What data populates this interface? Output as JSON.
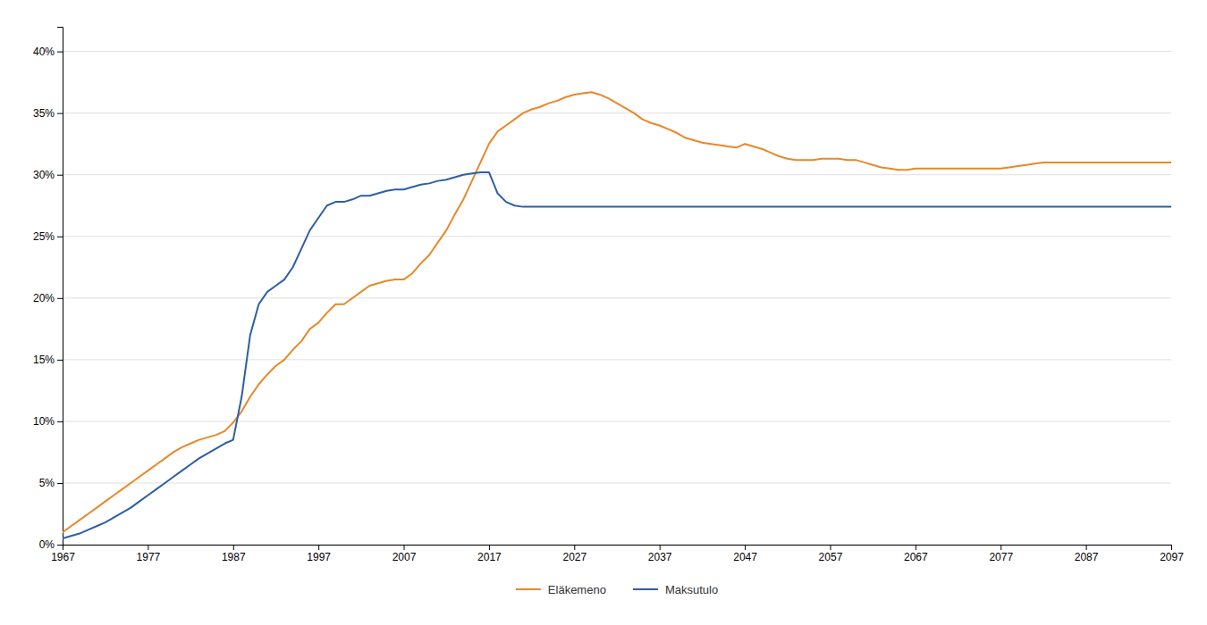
{
  "chart_data": {
    "type": "line",
    "xlim": [
      1967,
      2097
    ],
    "ylim": [
      0,
      42
    ],
    "xticks": [
      1967,
      1977,
      1987,
      1997,
      2007,
      2017,
      2027,
      2037,
      2047,
      2057,
      2067,
      2077,
      2087,
      2097
    ],
    "yticks": [
      {
        "value": 0,
        "label": "0%"
      },
      {
        "value": 5,
        "label": "5%"
      },
      {
        "value": 10,
        "label": "10%"
      },
      {
        "value": 15,
        "label": "15%"
      },
      {
        "value": 20,
        "label": "20%"
      },
      {
        "value": 25,
        "label": "25%"
      },
      {
        "value": 30,
        "label": "30%"
      },
      {
        "value": 35,
        "label": "35%"
      },
      {
        "value": 40,
        "label": "40%"
      }
    ],
    "grid": "y",
    "legend": "bottom",
    "series": [
      {
        "name": "Eläkemeno",
        "color": "#e8882a",
        "x": [
          1967,
          1968,
          1969,
          1970,
          1971,
          1972,
          1973,
          1974,
          1975,
          1976,
          1977,
          1978,
          1979,
          1980,
          1981,
          1982,
          1983,
          1984,
          1985,
          1986,
          1987,
          1988,
          1989,
          1990,
          1991,
          1992,
          1993,
          1994,
          1995,
          1996,
          1997,
          1998,
          1999,
          2000,
          2001,
          2002,
          2003,
          2004,
          2005,
          2006,
          2007,
          2008,
          2009,
          2010,
          2011,
          2012,
          2013,
          2014,
          2015,
          2016,
          2017,
          2018,
          2019,
          2020,
          2021,
          2022,
          2023,
          2024,
          2025,
          2026,
          2027,
          2028,
          2029,
          2030,
          2031,
          2032,
          2033,
          2034,
          2035,
          2036,
          2037,
          2038,
          2039,
          2040,
          2041,
          2042,
          2043,
          2044,
          2045,
          2046,
          2047,
          2048,
          2049,
          2050,
          2051,
          2052,
          2053,
          2054,
          2055,
          2056,
          2057,
          2058,
          2059,
          2060,
          2061,
          2062,
          2063,
          2064,
          2065,
          2066,
          2067,
          2068,
          2069,
          2070,
          2071,
          2072,
          2073,
          2074,
          2075,
          2076,
          2077,
          2078,
          2079,
          2080,
          2081,
          2082,
          2083,
          2084,
          2085,
          2086,
          2087,
          2088,
          2089,
          2090,
          2091,
          2092,
          2093,
          2094,
          2095,
          2096,
          2097
        ],
        "values": [
          1.0,
          1.5,
          2.0,
          2.5,
          3.0,
          3.5,
          4.0,
          4.5,
          5.0,
          5.5,
          6.0,
          6.5,
          7.0,
          7.5,
          7.9,
          8.2,
          8.5,
          8.7,
          8.9,
          9.2,
          9.9,
          10.8,
          12.0,
          13.0,
          13.8,
          14.5,
          15.0,
          15.8,
          16.5,
          17.5,
          18.0,
          18.8,
          19.5,
          19.5,
          20.0,
          20.5,
          21.0,
          21.2,
          21.4,
          21.5,
          21.5,
          22.0,
          22.8,
          23.5,
          24.5,
          25.5,
          26.8,
          28.0,
          29.5,
          31.0,
          32.5,
          33.5,
          34.0,
          34.5,
          35.0,
          35.3,
          35.5,
          35.8,
          36.0,
          36.3,
          36.5,
          36.6,
          36.7,
          36.5,
          36.2,
          35.8,
          35.4,
          35.0,
          34.5,
          34.2,
          34.0,
          33.7,
          33.4,
          33.0,
          32.8,
          32.6,
          32.5,
          32.4,
          32.3,
          32.2,
          32.5,
          32.3,
          32.1,
          31.8,
          31.5,
          31.3,
          31.2,
          31.2,
          31.2,
          31.3,
          31.3,
          31.3,
          31.2,
          31.2,
          31.0,
          30.8,
          30.6,
          30.5,
          30.4,
          30.4,
          30.5,
          30.5,
          30.5,
          30.5,
          30.5,
          30.5,
          30.5,
          30.5,
          30.5,
          30.5,
          30.5,
          30.6,
          30.7,
          30.8,
          30.9,
          31.0,
          31.0,
          31.0,
          31.0,
          31.0,
          31.0,
          31.0,
          31.0,
          31.0,
          31.0,
          31.0,
          31.0,
          31.0,
          31.0,
          31.0,
          31.0
        ]
      },
      {
        "name": "Maksutulo",
        "color": "#2e5fa3",
        "x": [
          1967,
          1968,
          1969,
          1970,
          1971,
          1972,
          1973,
          1974,
          1975,
          1976,
          1977,
          1978,
          1979,
          1980,
          1981,
          1982,
          1983,
          1984,
          1985,
          1986,
          1987,
          1988,
          1989,
          1990,
          1991,
          1992,
          1993,
          1994,
          1995,
          1996,
          1997,
          1998,
          1999,
          2000,
          2001,
          2002,
          2003,
          2004,
          2005,
          2006,
          2007,
          2008,
          2009,
          2010,
          2011,
          2012,
          2013,
          2014,
          2015,
          2016,
          2017,
          2018,
          2019,
          2020,
          2021,
          2022,
          2023,
          2024,
          2025,
          2026,
          2027,
          2037,
          2047,
          2057,
          2067,
          2077,
          2087,
          2097
        ],
        "values": [
          0.5,
          0.7,
          0.9,
          1.2,
          1.5,
          1.8,
          2.2,
          2.6,
          3.0,
          3.5,
          4.0,
          4.5,
          5.0,
          5.5,
          6.0,
          6.5,
          7.0,
          7.4,
          7.8,
          8.2,
          8.5,
          12.0,
          17.0,
          19.5,
          20.5,
          21.0,
          21.5,
          22.5,
          24.0,
          25.5,
          26.5,
          27.5,
          27.8,
          27.8,
          28.0,
          28.3,
          28.3,
          28.5,
          28.7,
          28.8,
          28.8,
          29.0,
          29.2,
          29.3,
          29.5,
          29.6,
          29.8,
          30.0,
          30.1,
          30.2,
          30.2,
          28.5,
          27.8,
          27.5,
          27.4,
          27.4,
          27.4,
          27.4,
          27.4,
          27.4,
          27.4,
          27.4,
          27.4,
          27.4,
          27.4,
          27.4,
          27.4,
          27.4
        ]
      }
    ]
  }
}
